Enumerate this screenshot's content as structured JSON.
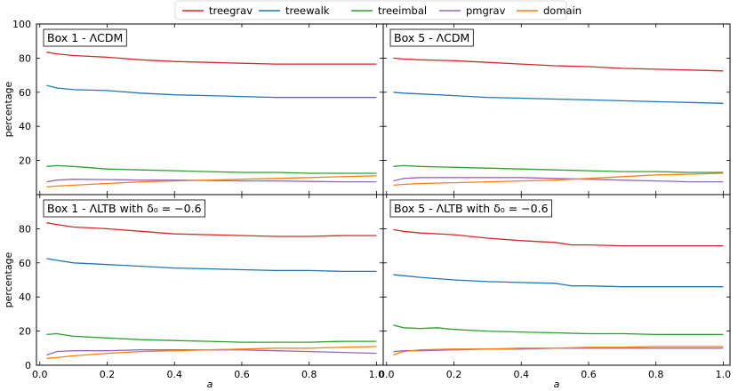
{
  "chart_data": {
    "type": "line",
    "legend": {
      "placement": "top-center",
      "entries": [
        {
          "name": "treegrav",
          "color": "#d62728"
        },
        {
          "name": "treewalk",
          "color": "#1f77b4"
        },
        {
          "name": "treeimbal",
          "color": "#2ca02c"
        },
        {
          "name": "pmgrav",
          "color": "#9467bd"
        },
        {
          "name": "domain",
          "color": "#ff7f0e"
        }
      ]
    },
    "xlabel": "a",
    "ylabel": "percentage",
    "xlim": [
      -0.01,
      1.02
    ],
    "ylim": [
      0,
      100
    ],
    "xticks": [
      "0.0",
      "0.2",
      "0.4",
      "0.6",
      "0.8",
      "1.0"
    ],
    "yticks_top": [
      "20",
      "40",
      "60",
      "80",
      "100"
    ],
    "yticks_bottom": [
      "0",
      "20",
      "40",
      "60",
      "80"
    ],
    "panels": [
      {
        "title": "Box 1 - ΛCDM",
        "series": [
          {
            "name": "treegrav",
            "x": [
              0.02,
              0.05,
              0.1,
              0.2,
              0.3,
              0.4,
              0.5,
              0.6,
              0.7,
              0.8,
              0.9,
              1.0
            ],
            "y": [
              83.5,
              82.5,
              81.5,
              80.5,
              79,
              78,
              77.5,
              77,
              76.5,
              76.5,
              76.5,
              76.5
            ]
          },
          {
            "name": "treewalk",
            "x": [
              0.02,
              0.05,
              0.1,
              0.2,
              0.3,
              0.4,
              0.5,
              0.6,
              0.7,
              0.8,
              0.9,
              1.0
            ],
            "y": [
              64,
              62.5,
              61.5,
              61,
              59.5,
              58.5,
              58,
              57.5,
              57,
              57,
              57,
              57
            ]
          },
          {
            "name": "treeimbal",
            "x": [
              0.02,
              0.05,
              0.1,
              0.2,
              0.3,
              0.4,
              0.5,
              0.6,
              0.7,
              0.8,
              0.9,
              1.0
            ],
            "y": [
              16.5,
              17,
              16.5,
              15,
              14.5,
              14,
              13.5,
              13,
              13,
              12.5,
              12.5,
              12.5
            ]
          },
          {
            "name": "pmgrav",
            "x": [
              0.02,
              0.05,
              0.1,
              0.2,
              0.3,
              0.4,
              0.5,
              0.6,
              0.7,
              0.8,
              0.9,
              1.0
            ],
            "y": [
              7.5,
              8.5,
              9,
              8.8,
              8.5,
              8.5,
              8.3,
              8,
              8,
              7.7,
              7.5,
              7.5
            ]
          },
          {
            "name": "domain",
            "x": [
              0.02,
              0.05,
              0.1,
              0.2,
              0.3,
              0.4,
              0.5,
              0.6,
              0.7,
              0.8,
              0.9,
              1.0
            ],
            "y": [
              4.5,
              5,
              5.5,
              6.5,
              7.5,
              8,
              8.5,
              9,
              9.5,
              10,
              10.5,
              11
            ]
          }
        ]
      },
      {
        "title": "Box 5 - ΛCDM",
        "series": [
          {
            "name": "treegrav",
            "x": [
              0.02,
              0.05,
              0.1,
              0.2,
              0.3,
              0.4,
              0.5,
              0.6,
              0.7,
              0.8,
              0.9,
              1.0
            ],
            "y": [
              80,
              79.5,
              79,
              78.5,
              77.5,
              76.5,
              75.5,
              75,
              74,
              73.5,
              73,
              72.5
            ]
          },
          {
            "name": "treewalk",
            "x": [
              0.02,
              0.05,
              0.1,
              0.2,
              0.3,
              0.4,
              0.5,
              0.6,
              0.7,
              0.8,
              0.9,
              1.0
            ],
            "y": [
              60,
              59.5,
              59,
              58,
              57,
              56.5,
              56,
              55.5,
              55,
              54.5,
              54,
              53.5
            ]
          },
          {
            "name": "treeimbal",
            "x": [
              0.02,
              0.05,
              0.1,
              0.2,
              0.3,
              0.4,
              0.5,
              0.6,
              0.7,
              0.8,
              0.9,
              1.0
            ],
            "y": [
              16.5,
              17,
              16.5,
              16,
              15.5,
              15,
              14.5,
              14,
              13.5,
              13.5,
              13,
              13
            ]
          },
          {
            "name": "pmgrav",
            "x": [
              0.02,
              0.05,
              0.1,
              0.2,
              0.3,
              0.4,
              0.5,
              0.6,
              0.7,
              0.8,
              0.9,
              1.0
            ],
            "y": [
              8,
              9.5,
              10,
              10,
              10,
              10,
              9.5,
              9,
              8.5,
              8,
              7.5,
              7.5
            ]
          },
          {
            "name": "domain",
            "x": [
              0.02,
              0.05,
              0.1,
              0.2,
              0.3,
              0.4,
              0.5,
              0.6,
              0.7,
              0.8,
              0.9,
              1.0
            ],
            "y": [
              5.5,
              6,
              6.5,
              7,
              7.5,
              8,
              8.5,
              9.5,
              10.5,
              11.5,
              12,
              12.5
            ]
          }
        ]
      },
      {
        "title": "Box 1 - ΛLTB with δ₀ = −0.6",
        "series": [
          {
            "name": "treegrav",
            "x": [
              0.02,
              0.05,
              0.1,
              0.2,
              0.3,
              0.4,
              0.5,
              0.6,
              0.7,
              0.8,
              0.9,
              1.0
            ],
            "y": [
              83.5,
              82.5,
              81,
              80,
              78.5,
              77,
              76.5,
              76,
              75.5,
              75.5,
              76,
              76
            ]
          },
          {
            "name": "treewalk",
            "x": [
              0.02,
              0.05,
              0.1,
              0.2,
              0.3,
              0.4,
              0.5,
              0.6,
              0.7,
              0.8,
              0.9,
              1.0
            ],
            "y": [
              62.5,
              61.5,
              60,
              59,
              58,
              57,
              56.5,
              56,
              55.5,
              55.5,
              55,
              55
            ]
          },
          {
            "name": "treeimbal",
            "x": [
              0.02,
              0.05,
              0.1,
              0.2,
              0.3,
              0.4,
              0.5,
              0.6,
              0.7,
              0.8,
              0.9,
              1.0
            ],
            "y": [
              18,
              18.5,
              17,
              16,
              15,
              14.5,
              14,
              13.5,
              13.5,
              13.5,
              14,
              14
            ]
          },
          {
            "name": "pmgrav",
            "x": [
              0.02,
              0.05,
              0.1,
              0.2,
              0.3,
              0.4,
              0.5,
              0.6,
              0.7,
              0.8,
              0.9,
              1.0
            ],
            "y": [
              6,
              8,
              8.5,
              8.5,
              9,
              9,
              9,
              9,
              8.5,
              8,
              7.5,
              7
            ]
          },
          {
            "name": "domain",
            "x": [
              0.02,
              0.05,
              0.1,
              0.2,
              0.3,
              0.4,
              0.5,
              0.6,
              0.7,
              0.8,
              0.9,
              1.0
            ],
            "y": [
              4,
              4.5,
              5.5,
              7,
              8,
              8.5,
              9,
              9.5,
              10,
              10,
              10.5,
              11
            ]
          }
        ]
      },
      {
        "title": "Box 5 - ΛLTB with δ₀ = −0.6",
        "series": [
          {
            "name": "treegrav",
            "x": [
              0.02,
              0.05,
              0.1,
              0.2,
              0.3,
              0.4,
              0.5,
              0.55,
              0.6,
              0.7,
              0.8,
              0.9,
              1.0
            ],
            "y": [
              79.5,
              78.5,
              77.5,
              76.5,
              74.5,
              73,
              72,
              70.5,
              70.5,
              70,
              70,
              70,
              70
            ]
          },
          {
            "name": "treewalk",
            "x": [
              0.02,
              0.05,
              0.1,
              0.2,
              0.3,
              0.4,
              0.5,
              0.55,
              0.6,
              0.7,
              0.8,
              0.9,
              1.0
            ],
            "y": [
              53,
              52.5,
              51.5,
              50,
              49,
              48.5,
              48,
              46.5,
              46.5,
              46,
              46,
              46,
              46
            ]
          },
          {
            "name": "treeimbal",
            "x": [
              0.02,
              0.05,
              0.1,
              0.15,
              0.2,
              0.3,
              0.4,
              0.5,
              0.6,
              0.7,
              0.8,
              0.9,
              1.0
            ],
            "y": [
              23.5,
              22,
              21.5,
              22,
              21,
              20,
              19.5,
              19,
              18.5,
              18.5,
              18,
              18,
              18
            ]
          },
          {
            "name": "pmgrav",
            "x": [
              0.02,
              0.05,
              0.1,
              0.2,
              0.3,
              0.4,
              0.5,
              0.6,
              0.7,
              0.8,
              0.9,
              1.0
            ],
            "y": [
              8,
              8.5,
              8.5,
              9,
              9.5,
              9.5,
              10,
              10,
              10,
              10,
              10,
              10
            ]
          },
          {
            "name": "domain",
            "x": [
              0.02,
              0.05,
              0.1,
              0.2,
              0.3,
              0.4,
              0.5,
              0.6,
              0.7,
              0.8,
              0.9,
              1.0
            ],
            "y": [
              6,
              8,
              9,
              9.5,
              9.5,
              10,
              10,
              10.5,
              10.5,
              11,
              11,
              11
            ]
          }
        ]
      }
    ]
  }
}
